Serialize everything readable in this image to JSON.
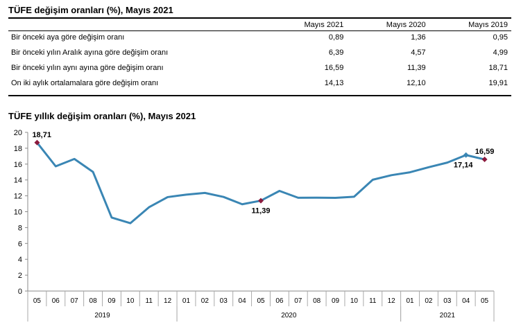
{
  "table": {
    "title": "TÜFE değişim oranları (%), Mayıs 2021",
    "columns": [
      "Mayıs 2021",
      "Mayıs 2020",
      "Mayıs 2019"
    ],
    "rows": [
      {
        "label": "Bir önceki aya göre değişim oranı",
        "values": [
          "0,89",
          "1,36",
          "0,95"
        ]
      },
      {
        "label": "Bir önceki yılın Aralık ayına göre değişim oranı",
        "values": [
          "6,39",
          "4,57",
          "4,99"
        ]
      },
      {
        "label": "Bir önceki yılın aynı ayına göre değişim oranı",
        "values": [
          "16,59",
          "11,39",
          "18,71"
        ]
      },
      {
        "label": "On iki aylık ortalamalara göre değişim oranı",
        "values": [
          "14,13",
          "12,10",
          "19,91"
        ]
      }
    ]
  },
  "chart_data": {
    "type": "line",
    "title": "TÜFE yıllık değişim oranları (%), Mayıs 2021",
    "xlabel": "",
    "ylabel": "",
    "ylim": [
      0,
      20
    ],
    "yticks": [
      0,
      2,
      4,
      6,
      8,
      10,
      12,
      14,
      16,
      18,
      20
    ],
    "categories": [
      "05",
      "06",
      "07",
      "08",
      "09",
      "10",
      "11",
      "12",
      "01",
      "02",
      "03",
      "04",
      "05",
      "06",
      "07",
      "08",
      "09",
      "10",
      "11",
      "12",
      "01",
      "02",
      "03",
      "04",
      "05"
    ],
    "year_groups": [
      {
        "label": "2019",
        "start": 0,
        "end": 7
      },
      {
        "label": "2020",
        "start": 8,
        "end": 19
      },
      {
        "label": "2021",
        "start": 20,
        "end": 24
      }
    ],
    "series": [
      {
        "values": [
          18.71,
          15.72,
          16.65,
          15.01,
          9.26,
          8.55,
          10.56,
          11.84,
          12.15,
          12.37,
          11.86,
          10.94,
          11.39,
          12.62,
          11.76,
          11.77,
          11.75,
          11.89,
          14.03,
          14.6,
          14.97,
          15.61,
          16.19,
          17.14,
          16.59
        ]
      }
    ],
    "annotations": [
      {
        "index": 0,
        "text": "18,71",
        "position": "above"
      },
      {
        "index": 12,
        "text": "11,39",
        "position": "below"
      },
      {
        "index": 23,
        "text": "17,14",
        "position": "below"
      },
      {
        "index": 24,
        "text": "16,59",
        "position": "above"
      }
    ],
    "marker_indices": [
      0,
      12,
      24
    ],
    "line_color": "#3a86b4",
    "marker_color": "#8b1a3d",
    "marker_color_secondary": "#3a86b4",
    "grid": false
  }
}
